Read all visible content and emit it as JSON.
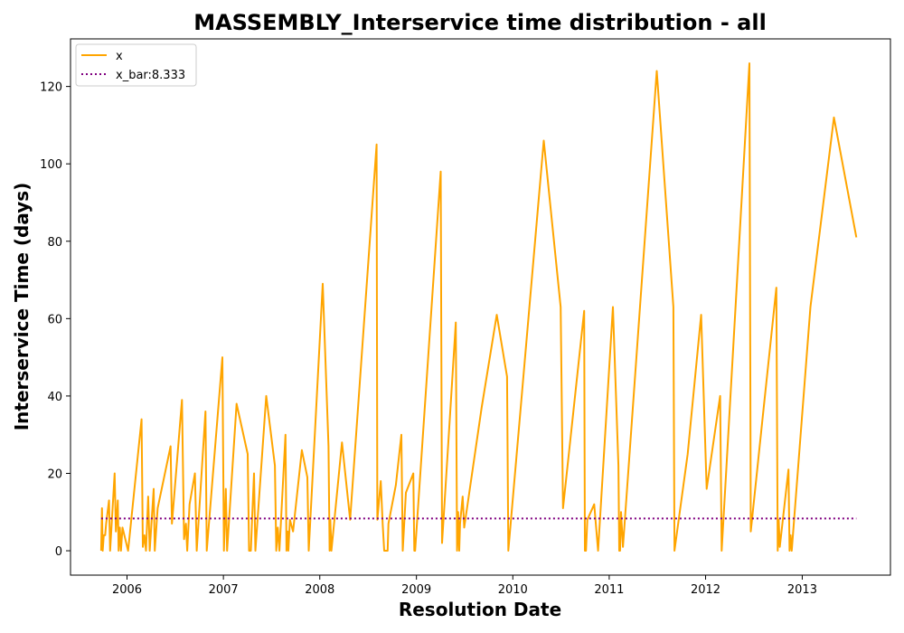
{
  "chart_data": {
    "type": "line",
    "title": "MASSEMBLY_Interservice time distribution - all",
    "xlabel": "Resolution Date",
    "ylabel": "Interservice Time (days)",
    "xlim": [
      "2005-06-01",
      "2013-12-01"
    ],
    "ylim": [
      -6.3,
      132.3
    ],
    "x_ticks": [
      {
        "date": "2006-01-01",
        "label": "2006"
      },
      {
        "date": "2007-01-01",
        "label": "2007"
      },
      {
        "date": "2008-01-01",
        "label": "2008"
      },
      {
        "date": "2009-01-01",
        "label": "2009"
      },
      {
        "date": "2010-01-01",
        "label": "2010"
      },
      {
        "date": "2011-01-01",
        "label": "2011"
      },
      {
        "date": "2012-01-01",
        "label": "2012"
      },
      {
        "date": "2013-01-01",
        "label": "2013"
      }
    ],
    "y_ticks": [
      0,
      20,
      40,
      60,
      80,
      100,
      120
    ],
    "grid": false,
    "legend_position": "top-left",
    "colors": {
      "x": "#FFA500",
      "x_bar": "#800080"
    },
    "series": [
      {
        "name": "x",
        "style": "solid",
        "points": [
          [
            "2005-09-25",
            0
          ],
          [
            "2005-09-28",
            11
          ],
          [
            "2005-10-01",
            0
          ],
          [
            "2005-10-05",
            4
          ],
          [
            "2005-10-10",
            4
          ],
          [
            "2005-10-14",
            7
          ],
          [
            "2005-10-25",
            13
          ],
          [
            "2005-10-29",
            0
          ],
          [
            "2005-11-15",
            20
          ],
          [
            "2005-11-20",
            5
          ],
          [
            "2005-11-27",
            13
          ],
          [
            "2005-11-30",
            0
          ],
          [
            "2005-12-05",
            6
          ],
          [
            "2005-12-09",
            0
          ],
          [
            "2005-12-15",
            6
          ],
          [
            "2006-01-05",
            0
          ],
          [
            "2006-02-25",
            34
          ],
          [
            "2006-03-02",
            1
          ],
          [
            "2006-03-08",
            4
          ],
          [
            "2006-03-14",
            0
          ],
          [
            "2006-03-22",
            14
          ],
          [
            "2006-03-28",
            0
          ],
          [
            "2006-04-12",
            16
          ],
          [
            "2006-04-16",
            0
          ],
          [
            "2006-04-27",
            11
          ],
          [
            "2006-06-15",
            27
          ],
          [
            "2006-06-20",
            7
          ],
          [
            "2006-07-28",
            39
          ],
          [
            "2006-08-05",
            3
          ],
          [
            "2006-08-12",
            7
          ],
          [
            "2006-08-17",
            0
          ],
          [
            "2006-08-26",
            12
          ],
          [
            "2006-09-15",
            20
          ],
          [
            "2006-09-22",
            0
          ],
          [
            "2006-10-25",
            36
          ],
          [
            "2006-10-30",
            0
          ],
          [
            "2006-12-28",
            50
          ],
          [
            "2007-01-03",
            0
          ],
          [
            "2007-01-10",
            16
          ],
          [
            "2007-01-15",
            0
          ],
          [
            "2007-02-20",
            38
          ],
          [
            "2007-04-03",
            25
          ],
          [
            "2007-04-08",
            0
          ],
          [
            "2007-04-15",
            0
          ],
          [
            "2007-04-20",
            9
          ],
          [
            "2007-04-27",
            20
          ],
          [
            "2007-05-02",
            0
          ],
          [
            "2007-06-12",
            40
          ],
          [
            "2007-07-15",
            22
          ],
          [
            "2007-07-20",
            0
          ],
          [
            "2007-07-26",
            6
          ],
          [
            "2007-08-01",
            0
          ],
          [
            "2007-08-24",
            30
          ],
          [
            "2007-08-28",
            0
          ],
          [
            "2007-09-01",
            5
          ],
          [
            "2007-09-04",
            0
          ],
          [
            "2007-09-10",
            8
          ],
          [
            "2007-09-22",
            5
          ],
          [
            "2007-10-25",
            26
          ],
          [
            "2007-11-15",
            19
          ],
          [
            "2007-11-20",
            0
          ],
          [
            "2008-01-12",
            69
          ],
          [
            "2008-02-03",
            27
          ],
          [
            "2008-02-07",
            0
          ],
          [
            "2008-02-10",
            8
          ],
          [
            "2008-02-14",
            0
          ],
          [
            "2008-03-25",
            28
          ],
          [
            "2008-04-25",
            8
          ],
          [
            "2008-08-03",
            105
          ],
          [
            "2008-08-06",
            8
          ],
          [
            "2008-08-19",
            18
          ],
          [
            "2008-08-26",
            7
          ],
          [
            "2008-09-01",
            0
          ],
          [
            "2008-09-06",
            0
          ],
          [
            "2008-09-10",
            0
          ],
          [
            "2008-09-14",
            0
          ],
          [
            "2008-09-17",
            7
          ],
          [
            "2008-10-15",
            17
          ],
          [
            "2008-11-05",
            30
          ],
          [
            "2008-11-10",
            0
          ],
          [
            "2008-11-22",
            15
          ],
          [
            "2008-12-20",
            20
          ],
          [
            "2008-12-24",
            0
          ],
          [
            "2008-12-27",
            0
          ],
          [
            "2009-04-03",
            98
          ],
          [
            "2009-04-08",
            2
          ],
          [
            "2009-05-30",
            59
          ],
          [
            "2009-06-04",
            0
          ],
          [
            "2009-06-08",
            10
          ],
          [
            "2009-06-12",
            0
          ],
          [
            "2009-06-15",
            7
          ],
          [
            "2009-06-25",
            14
          ],
          [
            "2009-07-01",
            6
          ],
          [
            "2009-09-05",
            37
          ],
          [
            "2009-11-01",
            61
          ],
          [
            "2009-12-10",
            45
          ],
          [
            "2009-12-15",
            0
          ],
          [
            "2010-02-05",
            41
          ],
          [
            "2010-04-28",
            106
          ],
          [
            "2010-07-01",
            63
          ],
          [
            "2010-07-10",
            11
          ],
          [
            "2010-09-28",
            62
          ],
          [
            "2010-10-01",
            0
          ],
          [
            "2010-10-05",
            0
          ],
          [
            "2010-10-10",
            8
          ],
          [
            "2010-11-05",
            12
          ],
          [
            "2010-11-20",
            0
          ],
          [
            "2011-01-15",
            63
          ],
          [
            "2011-02-05",
            22
          ],
          [
            "2011-02-08",
            0
          ],
          [
            "2011-02-11",
            0
          ],
          [
            "2011-02-15",
            10
          ],
          [
            "2011-02-22",
            1
          ],
          [
            "2011-06-30",
            124
          ],
          [
            "2011-09-01",
            63
          ],
          [
            "2011-09-05",
            0
          ],
          [
            "2011-10-25",
            25
          ],
          [
            "2011-12-15",
            61
          ],
          [
            "2012-01-05",
            16
          ],
          [
            "2012-02-25",
            40
          ],
          [
            "2012-03-02",
            0
          ],
          [
            "2012-06-15",
            126
          ],
          [
            "2012-06-20",
            5
          ],
          [
            "2012-08-05",
            35
          ],
          [
            "2012-09-25",
            68
          ],
          [
            "2012-09-30",
            0
          ],
          [
            "2012-10-04",
            8
          ],
          [
            "2012-10-08",
            1
          ],
          [
            "2012-11-10",
            21
          ],
          [
            "2012-11-14",
            0
          ],
          [
            "2012-11-18",
            4
          ],
          [
            "2012-11-22",
            0
          ],
          [
            "2013-02-01",
            63
          ],
          [
            "2013-05-01",
            112
          ],
          [
            "2013-07-25",
            81
          ]
        ]
      },
      {
        "name": "x_bar:8.333",
        "style": "dotted",
        "points": [
          [
            "2005-09-25",
            8.333
          ],
          [
            "2013-07-25",
            8.333
          ]
        ]
      }
    ]
  }
}
